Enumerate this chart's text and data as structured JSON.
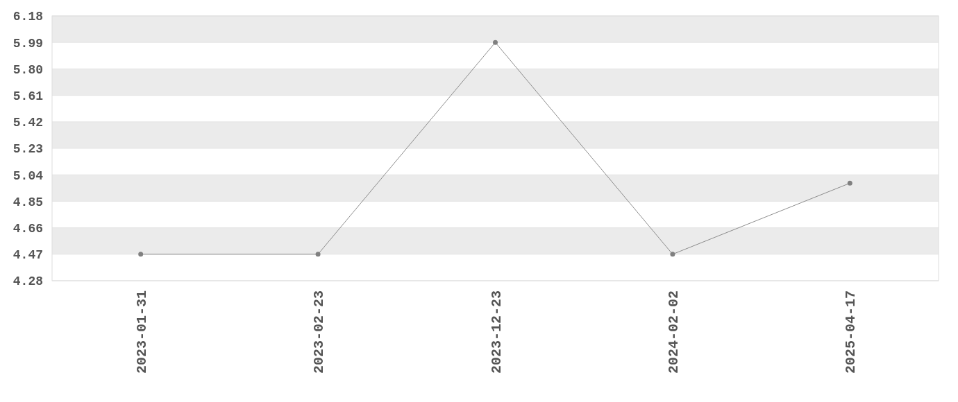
{
  "chart_data": {
    "type": "line",
    "categories": [
      "2023-01-31",
      "2023-02-23",
      "2023-12-23",
      "2024-02-02",
      "2025-04-17"
    ],
    "series": [
      {
        "color": "#808080",
        "values": [
          4.47,
          4.47,
          5.99,
          4.47,
          4.98
        ]
      }
    ],
    "ylim": [
      4.28,
      6.18
    ],
    "yticks": [
      {
        "value": 4.28,
        "label": "4.28"
      },
      {
        "value": 4.47,
        "label": "4.47"
      },
      {
        "value": 4.66,
        "label": "4.66"
      },
      {
        "value": 4.85,
        "label": "4.85"
      },
      {
        "value": 5.04,
        "label": "5.04"
      },
      {
        "value": 5.23,
        "label": "5.23"
      },
      {
        "value": 5.42,
        "label": "5.42"
      },
      {
        "value": 5.61,
        "label": "5.61"
      },
      {
        "value": 5.8,
        "label": "5.80"
      },
      {
        "value": 5.99,
        "label": "5.99"
      },
      {
        "value": 6.18,
        "label": "6.18"
      }
    ],
    "grid": "y",
    "marker": "circle",
    "line_style": "solid"
  }
}
